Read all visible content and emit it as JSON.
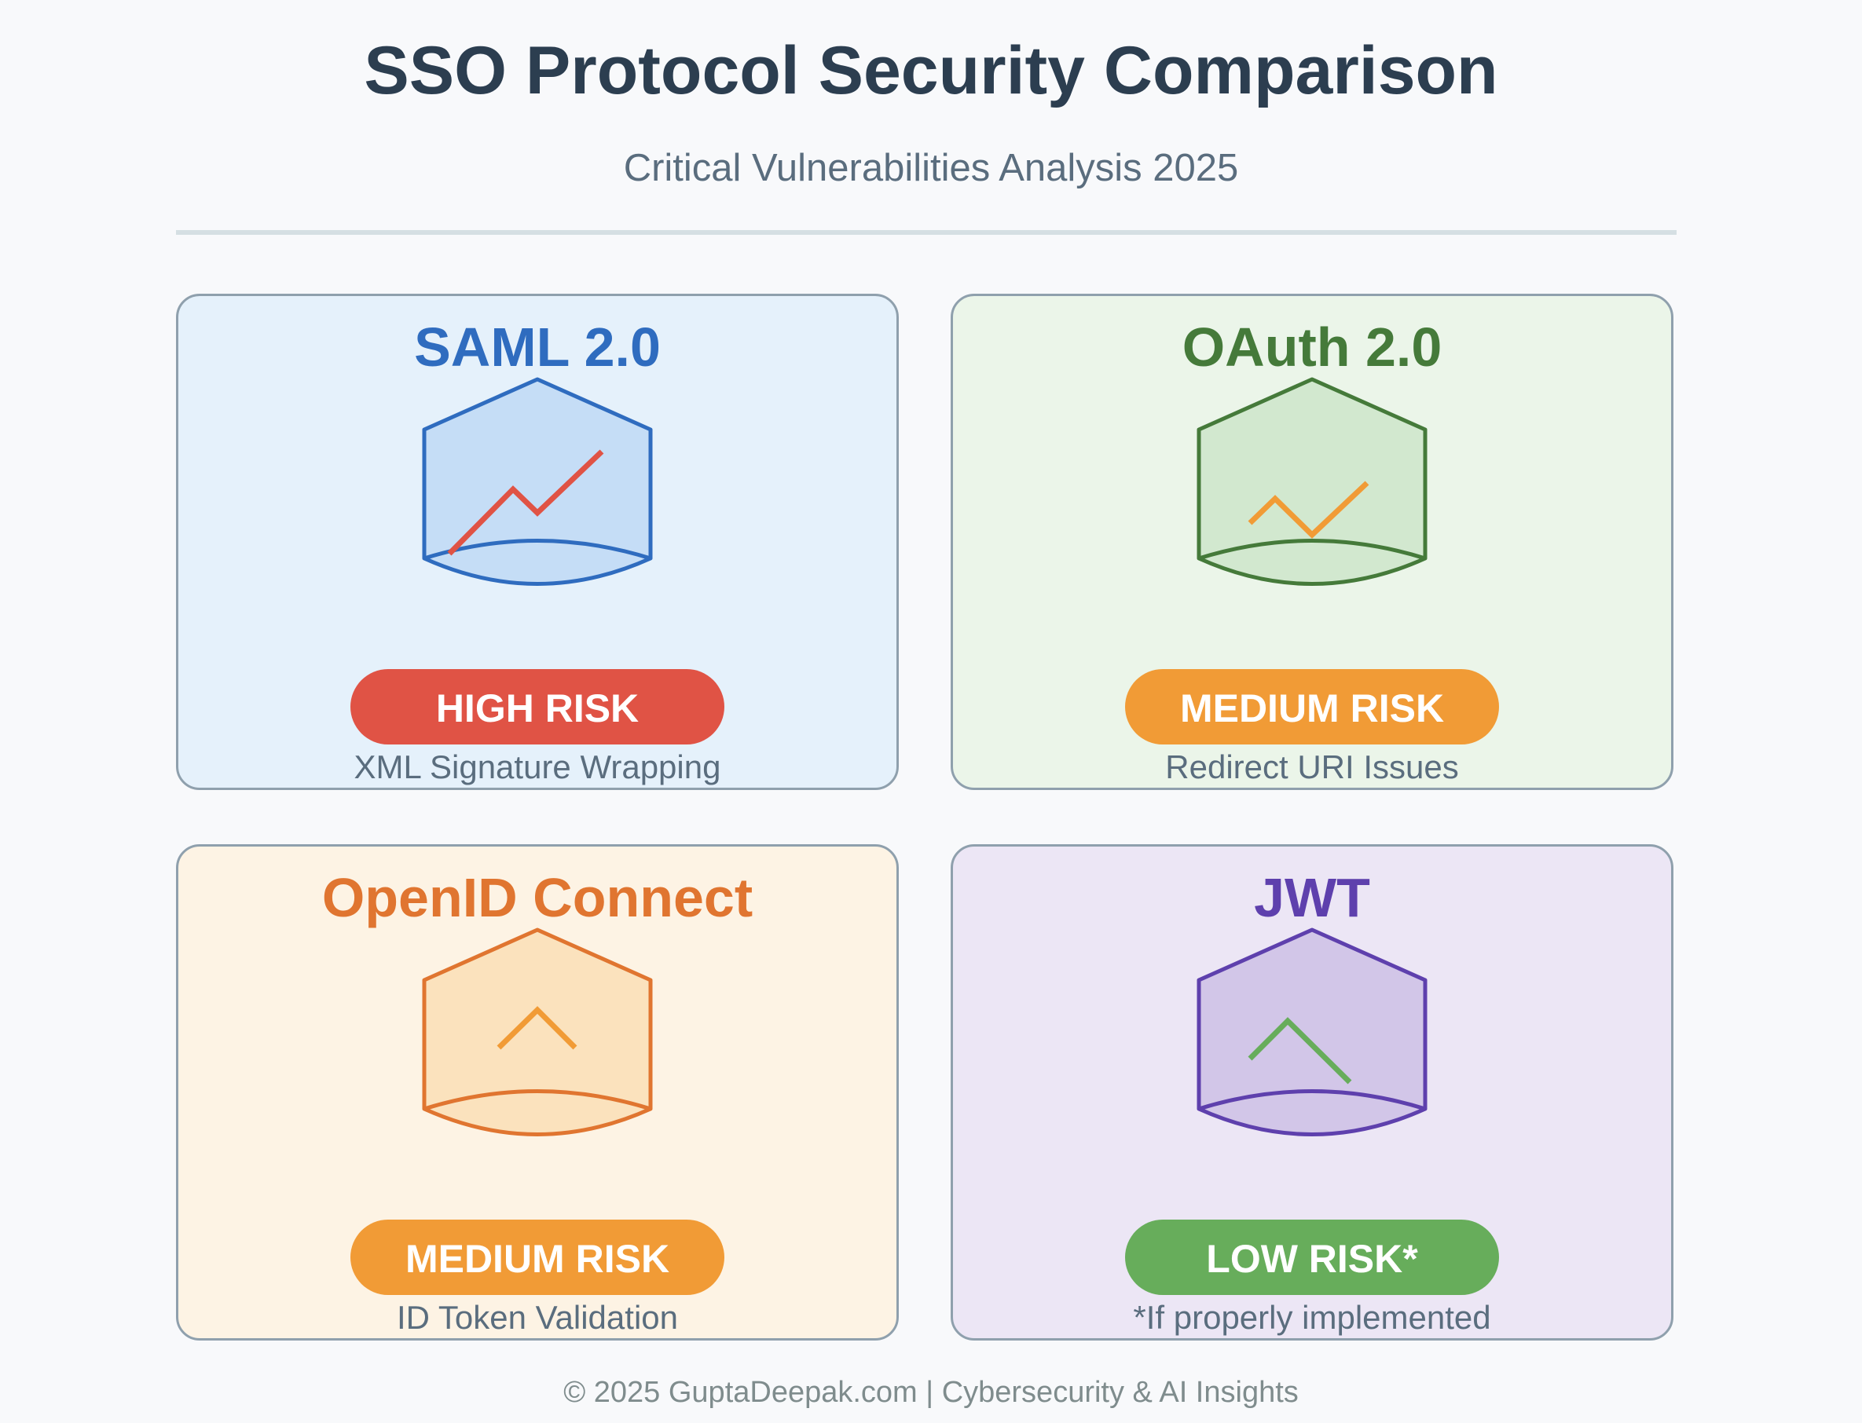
{
  "header": {
    "title": "SSO Protocol Security Comparison",
    "subtitle": "Critical Vulnerabilities Analysis 2025"
  },
  "cards": [
    {
      "name": "SAML 2.0",
      "risk": "HIGH RISK",
      "issue": "XML Signature Wrapping",
      "colors": {
        "accent": "#2f6cbf",
        "card_bg": "#e5f1fb",
        "shield_fill": "#c5ddf6",
        "trend": "#e05345",
        "badge": "#e05345"
      },
      "icon": "shield-rising-trend-icon"
    },
    {
      "name": "OAuth 2.0",
      "risk": "MEDIUM RISK",
      "issue": "Redirect URI Issues",
      "colors": {
        "accent": "#457a3a",
        "card_bg": "#ebf5e9",
        "shield_fill": "#d2e8cf",
        "trend": "#f19b36",
        "badge": "#f19b36"
      },
      "icon": "shield-zigzag-trend-icon"
    },
    {
      "name": "OpenID Connect",
      "risk": "MEDIUM RISK",
      "issue": "ID Token Validation",
      "colors": {
        "accent": "#e07530",
        "card_bg": "#fdf3e4",
        "shield_fill": "#fbe2bd",
        "trend": "#f19b36",
        "badge": "#f19b36"
      },
      "icon": "shield-peak-trend-icon"
    },
    {
      "name": "JWT",
      "risk": "LOW RISK*",
      "issue": "*If properly implemented",
      "colors": {
        "accent": "#5e40ad",
        "card_bg": "#ece6f5",
        "shield_fill": "#d2c6e8",
        "trend": "#67ad5b",
        "badge": "#67ad5b"
      },
      "icon": "shield-falling-trend-icon"
    }
  ],
  "footer": {
    "text": "© 2025 GuptaDeepak.com | Cybersecurity & AI Insights"
  }
}
